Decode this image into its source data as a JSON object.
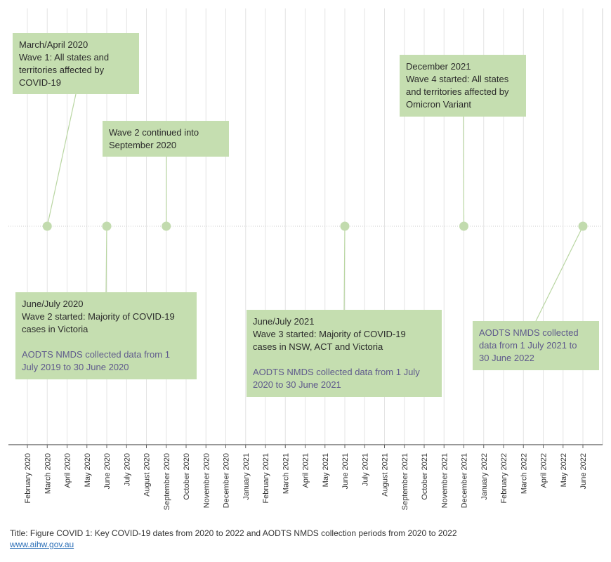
{
  "chart_data": {
    "type": "timeline",
    "x_ticks": [
      "February 2020",
      "March 2020",
      "April 2020",
      "May 2020",
      "June 2020",
      "July 2020",
      "August 2020",
      "September 2020",
      "October 2020",
      "November 2020",
      "December 2020",
      "January 2021",
      "February 2021",
      "March 2021",
      "April 2021",
      "May 2021",
      "June 2021",
      "July 2021",
      "August 2021",
      "September 2021",
      "October 2021",
      "November 2021",
      "December 2021",
      "January 2022",
      "February 2022",
      "March 2022",
      "April 2022",
      "May 2022",
      "June 2022"
    ],
    "grid": true,
    "events": [
      {
        "date": "March 2020",
        "lines": [
          "March/April 2020",
          "Wave 1: All states and",
          "territories affected by",
          "COVID-19"
        ],
        "note": []
      },
      {
        "date": "June 2020",
        "lines": [
          "June/July 2020",
          "Wave 2 started: Majority of COVID-19",
          "cases in Victoria"
        ],
        "note": [
          "AODTS NMDS collected data from 1",
          "July 2019 to 30 June 2020"
        ]
      },
      {
        "date": "September 2020",
        "lines": [
          "Wave 2 continued into",
          "September 2020"
        ],
        "note": []
      },
      {
        "date": "June 2021",
        "lines": [
          "June/July 2021",
          "Wave 3 started: Majority of COVID-19",
          "cases in NSW, ACT and Victoria"
        ],
        "note": [
          "AODTS NMDS collected data from 1 July",
          "2020 to 30 June 2021"
        ]
      },
      {
        "date": "December 2021",
        "lines": [
          "December 2021",
          "Wave 4 started: All states",
          "and territories affected by",
          "Omicron Variant"
        ],
        "note": []
      },
      {
        "date": "June 2022",
        "lines": [],
        "note": [
          "AODTS NMDS collected",
          "data from 1 July 2021 to",
          "30 June 2022"
        ]
      }
    ]
  },
  "footer": {
    "title": "Title: Figure COVID 1: Key COVID-19 dates from 2020 to 2022 and AODTS NMDS collection periods from 2020 to 2022",
    "link": "www.aihw.gov.au"
  },
  "colors": {
    "box": "#c5deb0",
    "marker": "#c2dbae",
    "connector": "#b9d6a2",
    "note_text": "#5f5a8c",
    "grid": "#e4e4e4"
  }
}
